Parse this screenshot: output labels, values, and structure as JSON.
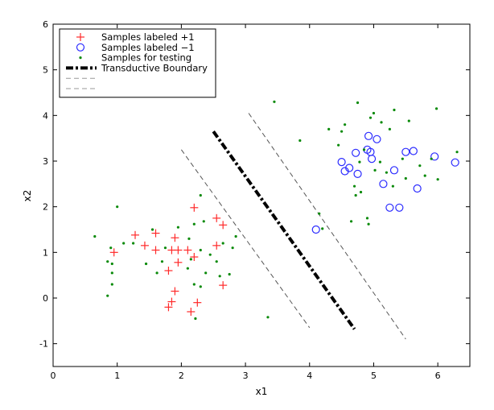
{
  "chart_data": {
    "type": "scatter",
    "xlabel": "x1",
    "ylabel": "x2",
    "xlim": [
      0,
      6.5
    ],
    "ylim": [
      -1.5,
      6
    ],
    "xticks": [
      0,
      1,
      2,
      3,
      4,
      5,
      6
    ],
    "yticks": [
      -1,
      0,
      1,
      2,
      3,
      4,
      5,
      6
    ],
    "grid": false,
    "legend_position": "top-left",
    "legend": [
      {
        "label": "Samples labeled +1",
        "marker": "plus",
        "color": "#ff2a2a"
      },
      {
        "label": "Samples labeled −1",
        "marker": "circle",
        "color": "#2a2aff"
      },
      {
        "label": "Samples for testing",
        "marker": "dot",
        "color": "#0a8a0a"
      },
      {
        "label": "Transductive Boundary",
        "marker": "dashdot-line",
        "color": "#000000"
      },
      {
        "label": "",
        "marker": "dashed-line",
        "color": "#999999"
      },
      {
        "label": "",
        "marker": "dashed-line",
        "color": "#999999"
      }
    ],
    "series": [
      {
        "name": "Samples labeled +1",
        "marker": "plus",
        "color": "#ff2a2a",
        "points": [
          [
            0.95,
            1.0
          ],
          [
            1.28,
            1.38
          ],
          [
            1.43,
            1.15
          ],
          [
            1.6,
            1.42
          ],
          [
            1.6,
            1.05
          ],
          [
            1.8,
            0.6
          ],
          [
            1.85,
            1.05
          ],
          [
            1.9,
            1.32
          ],
          [
            1.95,
            1.05
          ],
          [
            1.95,
            0.78
          ],
          [
            2.1,
            1.05
          ],
          [
            2.2,
            0.9
          ],
          [
            2.2,
            1.98
          ],
          [
            1.85,
            -0.08
          ],
          [
            1.9,
            0.15
          ],
          [
            1.8,
            -0.2
          ],
          [
            2.15,
            -0.3
          ],
          [
            2.25,
            -0.1
          ],
          [
            2.55,
            1.75
          ],
          [
            2.65,
            1.6
          ],
          [
            2.55,
            1.15
          ],
          [
            2.65,
            0.28
          ]
        ]
      },
      {
        "name": "Samples labeled −1",
        "marker": "circle",
        "color": "#2a2aff",
        "points": [
          [
            4.1,
            1.5
          ],
          [
            4.5,
            2.98
          ],
          [
            4.55,
            2.78
          ],
          [
            4.62,
            2.85
          ],
          [
            4.72,
            3.18
          ],
          [
            4.75,
            2.72
          ],
          [
            4.9,
            3.25
          ],
          [
            4.92,
            3.55
          ],
          [
            4.95,
            3.2
          ],
          [
            4.97,
            3.05
          ],
          [
            5.05,
            3.48
          ],
          [
            5.15,
            2.5
          ],
          [
            5.25,
            1.98
          ],
          [
            5.32,
            2.8
          ],
          [
            5.4,
            1.98
          ],
          [
            5.5,
            3.2
          ],
          [
            5.62,
            3.22
          ],
          [
            5.68,
            2.4
          ],
          [
            5.95,
            3.1
          ],
          [
            6.27,
            2.97
          ]
        ]
      },
      {
        "name": "Samples for testing",
        "marker": "dot",
        "color": "#0a8a0a",
        "points": [
          [
            0.65,
            1.35
          ],
          [
            0.85,
            0.8
          ],
          [
            0.85,
            0.05
          ],
          [
            0.9,
            1.1
          ],
          [
            0.92,
            0.55
          ],
          [
            0.92,
            0.3
          ],
          [
            0.92,
            0.75
          ],
          [
            1.0,
            2.0
          ],
          [
            1.1,
            1.2
          ],
          [
            1.25,
            1.2
          ],
          [
            1.45,
            0.75
          ],
          [
            1.55,
            1.5
          ],
          [
            1.62,
            0.55
          ],
          [
            1.7,
            0.8
          ],
          [
            1.75,
            1.1
          ],
          [
            1.95,
            1.55
          ],
          [
            2.1,
            0.65
          ],
          [
            2.15,
            0.85
          ],
          [
            2.12,
            1.3
          ],
          [
            2.2,
            0.3
          ],
          [
            2.3,
            0.25
          ],
          [
            2.3,
            1.05
          ],
          [
            2.2,
            1.62
          ],
          [
            2.35,
            1.68
          ],
          [
            2.22,
            -0.45
          ],
          [
            2.38,
            0.55
          ],
          [
            2.45,
            0.95
          ],
          [
            2.55,
            0.8
          ],
          [
            2.6,
            0.48
          ],
          [
            2.65,
            1.2
          ],
          [
            2.75,
            0.52
          ],
          [
            2.8,
            1.1
          ],
          [
            2.85,
            1.35
          ],
          [
            2.3,
            2.25
          ],
          [
            3.35,
            -0.42
          ],
          [
            3.45,
            4.3
          ],
          [
            3.85,
            3.45
          ],
          [
            4.15,
            1.85
          ],
          [
            4.2,
            1.52
          ],
          [
            4.3,
            3.7
          ],
          [
            4.45,
            3.35
          ],
          [
            4.5,
            3.65
          ],
          [
            4.55,
            3.8
          ],
          [
            4.65,
            1.68
          ],
          [
            4.7,
            2.45
          ],
          [
            4.72,
            2.25
          ],
          [
            4.75,
            4.28
          ],
          [
            4.78,
            2.98
          ],
          [
            4.8,
            2.32
          ],
          [
            4.85,
            3.25
          ],
          [
            4.9,
            1.75
          ],
          [
            4.92,
            1.62
          ],
          [
            4.95,
            3.95
          ],
          [
            5.0,
            4.05
          ],
          [
            5.02,
            2.8
          ],
          [
            5.1,
            2.98
          ],
          [
            5.12,
            3.85
          ],
          [
            5.2,
            2.75
          ],
          [
            5.25,
            3.7
          ],
          [
            5.3,
            2.45
          ],
          [
            5.32,
            4.12
          ],
          [
            5.45,
            3.05
          ],
          [
            5.5,
            2.62
          ],
          [
            5.55,
            3.88
          ],
          [
            5.72,
            2.9
          ],
          [
            5.8,
            2.68
          ],
          [
            5.9,
            3.05
          ],
          [
            5.98,
            4.15
          ],
          [
            6.0,
            2.6
          ],
          [
            6.3,
            3.2
          ]
        ]
      }
    ],
    "lines": [
      {
        "name": "Transductive Boundary",
        "style": "dashdot",
        "color": "#000000",
        "points": [
          [
            2.5,
            3.65
          ],
          [
            4.7,
            -0.68
          ]
        ]
      },
      {
        "style": "dashed",
        "color": "#555555",
        "points": [
          [
            2.0,
            3.25
          ],
          [
            4.0,
            -0.65
          ]
        ]
      },
      {
        "style": "dashed",
        "color": "#555555",
        "points": [
          [
            3.05,
            4.05
          ],
          [
            5.5,
            -0.9
          ]
        ]
      }
    ]
  }
}
